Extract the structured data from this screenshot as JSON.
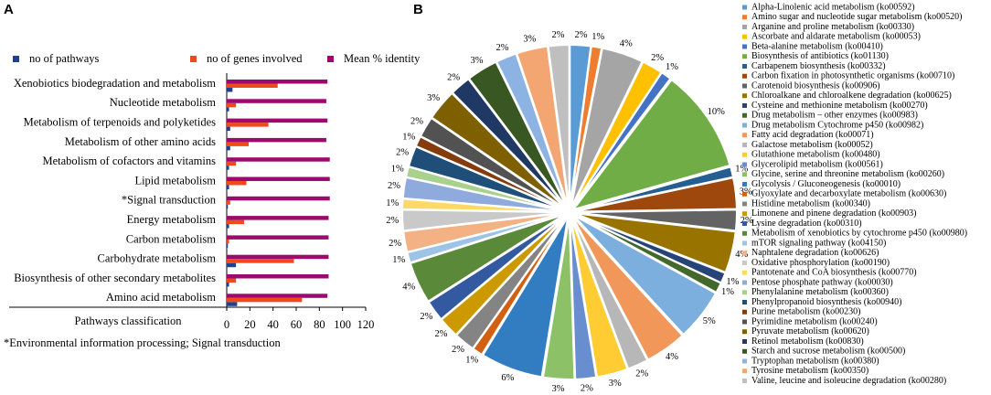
{
  "chart_data": [
    {
      "type": "bar",
      "orientation": "horizontal",
      "panel_label": "A",
      "categories": [
        "Xenobiotics biodegradation and metabolism",
        "Nucleotide metabolism",
        "Metabolism of terpenoids and polyketides",
        "Metabolism of other amino acids",
        "Metabolism of cofactors and vitamins",
        "Lipid metabolism",
        "*Signal transduction",
        "Energy metabolism",
        "Carbon metabolism",
        "Carbohydrate metabolism",
        "Biosynthesis of other secondary metabolites",
        "Amino acid metabolism"
      ],
      "series": [
        {
          "name": "no of pathways",
          "color": "#1f3f8f",
          "values": [
            5,
            2,
            3,
            3,
            2,
            2,
            1,
            2,
            1,
            8,
            2,
            9
          ]
        },
        {
          "name": "no of genes involved",
          "color": "#f04a1c",
          "values": [
            44,
            8,
            36,
            19,
            8,
            17,
            3,
            15,
            2,
            58,
            8,
            65
          ]
        },
        {
          "name": "Mean % identity",
          "color": "#9c0a6e",
          "values": [
            87,
            86,
            87,
            86,
            89,
            89,
            89,
            88,
            88,
            88,
            88,
            87
          ]
        }
      ],
      "ylabel": "Pathways classification",
      "xlim": [
        0,
        120
      ],
      "xticks": [
        0,
        20,
        40,
        60,
        80,
        100,
        120
      ],
      "legend": "top",
      "footnote": "*Environmental information processing; Signal transduction"
    },
    {
      "type": "pie",
      "panel_label": "B",
      "categories": [
        "Alpha-Linolenic acid metabolism (ko00592)",
        "Amino sugar and nucleotide sugar metabolism (ko00520)",
        "Arganine and proline metabolism (ko00330)",
        "Ascorbate and aldarate metabolism (ko00053)",
        "Beta-alanine metabolism (ko00410)",
        "Biosynthesis of antibiotics (ko01130)",
        "Carbapenem biosynthesis (ko00332)",
        "Carbon fixation in photosynthetic organisms (ko00710)",
        "Carotenoid biosynthesis (ko00906)",
        "Chloroalkane and chloroalkene degradation (ko00625)",
        "Cysteine and methionine metabolism (ko00270)",
        "Drug metabolism – other enzymes (ko00983)",
        "Drug metabolism Cytochrome p450 (ko00982)",
        "Fatty acid degradation (ko00071)",
        "Galactose metabolism (ko00052)",
        "Glutathione metabolism (ko00480)",
        "Glycerolipid metabolism (ko00561)",
        "Glycine, serine and threonine metabolism (ko00260)",
        "Glycolysis / Gluconeogenesis (ko00010)",
        "Glyoxylate and decarboxylate metabolism (ko00630)",
        "Histidine metabolism (ko00340)",
        "Limonene and pinene degradation (ko00903)",
        "Lysine degradation (ko00310)",
        "Metabolism of xenobiotics by cytochrome p450 (ko00980)",
        "mTOR signaling pathway (ko04150)",
        "Naphtalene degradation (ko00626)",
        "Oxidative phosphorylation (ko00190)",
        "Pantotenate and CoA biosynthesis (ko00770)",
        "Pentose phosphate pathway (ko00030)",
        "Phenylalanine metabolism (ko00360)",
        "Phenylpropanoid biosynthesis (ko00940)",
        "Purine metabolism (ko00230)",
        "Pyrimidine metabolism (ko00240)",
        "Pyruvate metabolism (ko00620)",
        "Retinol metabolism (ko00830)",
        "Starch and sucrose metabolism (ko00500)",
        "Tryptophan metabolism (ko00380)",
        "Tyrosine metabolism (ko00350)",
        "Valine, leucine and isoleucine degradation (ko00280)"
      ],
      "values": [
        2,
        1,
        4,
        2,
        1,
        10,
        1,
        3,
        2,
        4,
        1,
        1,
        5,
        4,
        2,
        3,
        2,
        3,
        6,
        1,
        2,
        2,
        2,
        4,
        1,
        2,
        2,
        1,
        2,
        1,
        2,
        1,
        2,
        3,
        2,
        3,
        2,
        3,
        2
      ],
      "value_labels": [
        "2%",
        "1%",
        "4%",
        "2%",
        "1%",
        "10%",
        "1%",
        "3%",
        "2%",
        "4%",
        "1%",
        "1%",
        "5%",
        "4%",
        "2%",
        "3%",
        "2%",
        "3%",
        "6%",
        "1%",
        "2%",
        "2%",
        "2%",
        "4%",
        "1%",
        "2%",
        "2%",
        "1%",
        "2%",
        "1%",
        "2%",
        "1%",
        "2%",
        "3%",
        "2%",
        "3%",
        "2%",
        "3%",
        "2%"
      ],
      "colors": [
        "#5b9bd5",
        "#ed7d31",
        "#a5a5a5",
        "#ffc000",
        "#4472c4",
        "#70ad47",
        "#255e91",
        "#9e480e",
        "#636363",
        "#997300",
        "#264478",
        "#43682b",
        "#7cafdd",
        "#f1975a",
        "#b7b7b7",
        "#ffcd33",
        "#698ed0",
        "#8cc168",
        "#327dc2",
        "#d26012",
        "#848484",
        "#cc9a00",
        "#335aa1",
        "#5a8a39",
        "#9dc3e6",
        "#f4b183",
        "#c9c9c9",
        "#ffd966",
        "#8faadc",
        "#a9d18e",
        "#1f4e79",
        "#843c0c",
        "#525252",
        "#7f6000",
        "#203864",
        "#385723",
        "#8db3e2",
        "#f4a672",
        "#bfbfbf"
      ],
      "legend": "right"
    }
  ]
}
